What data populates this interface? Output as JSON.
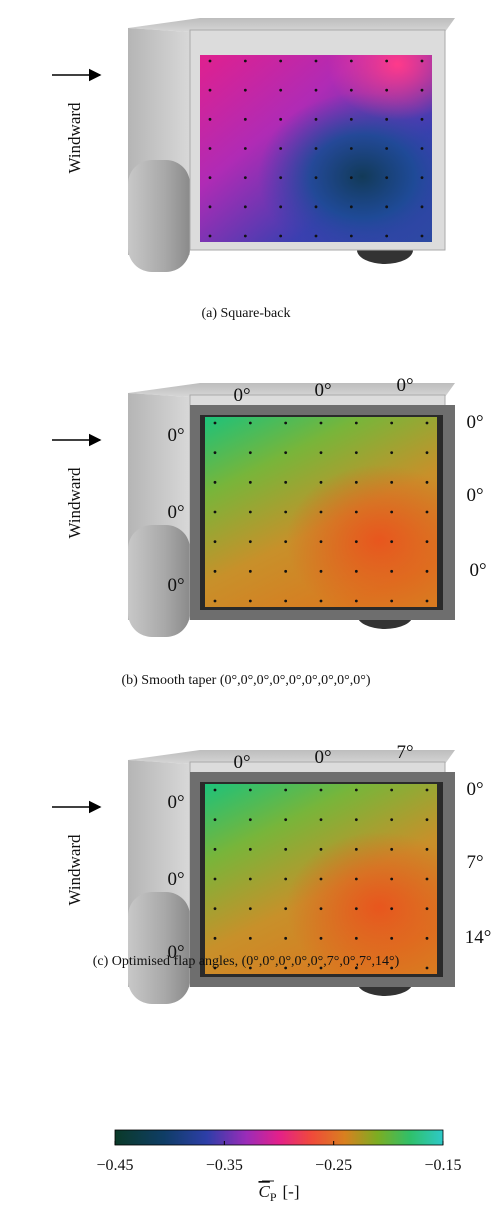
{
  "panels": [
    {
      "caption": "(a) Square-back",
      "windward": "Windward"
    },
    {
      "caption": "(b) Smooth taper (0°,0°,0°,0°,0°,0°,0°,0°,0°)",
      "windward": "Windward",
      "angles": {
        "top": [
          "0°",
          "0°",
          "0°"
        ],
        "left": [
          "0°",
          "0°",
          "0°"
        ],
        "right": [
          "0°",
          "0°",
          "0°"
        ]
      }
    },
    {
      "caption": "(c) Optimised flap angles, (0°,0°,0°,0°,0°,7°,0°,7°,14°)",
      "windward": "Windward",
      "angles": {
        "top": [
          "0°",
          "0°",
          "7°"
        ],
        "left": [
          "0°",
          "0°",
          "0°"
        ],
        "right": [
          "0°",
          "7°",
          "14°"
        ]
      }
    }
  ],
  "colorbar": {
    "lim": [
      -0.45,
      -0.15
    ],
    "ticks": [
      {
        "value": -0.45,
        "label": "−0.45"
      },
      {
        "value": -0.35,
        "label": "−0.35"
      },
      {
        "value": -0.25,
        "label": "−0.25"
      },
      {
        "value": -0.15,
        "label": "−0.15"
      }
    ],
    "symbol": "C",
    "subscript": "P",
    "unit": "[-]"
  }
}
